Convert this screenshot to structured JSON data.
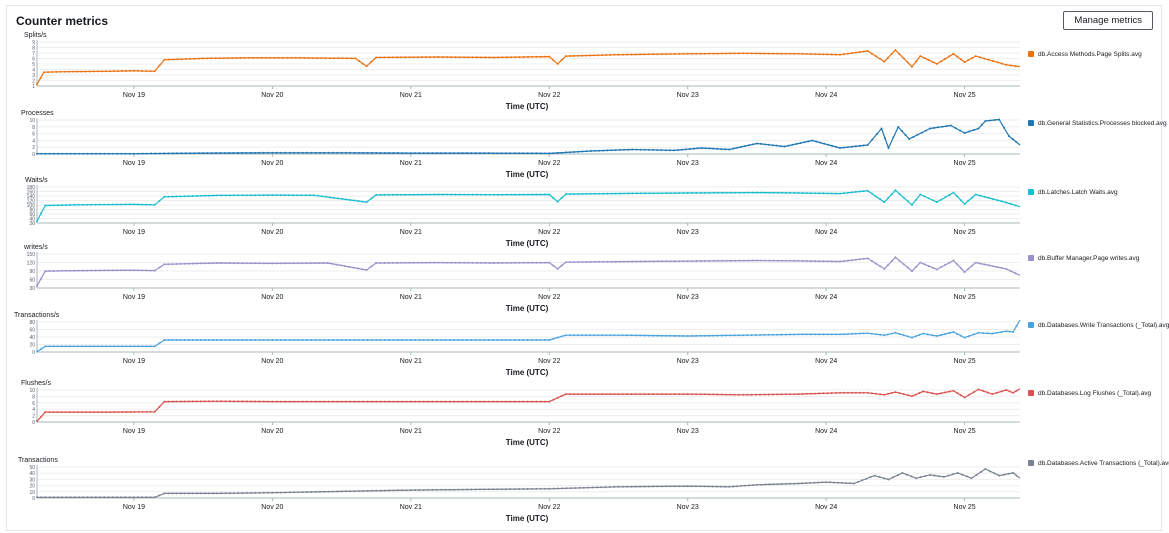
{
  "panel": {
    "title": "Counter metrics",
    "manage_button": "Manage metrics"
  },
  "x_axis": {
    "label": "Time (UTC)",
    "ticks": [
      "Nov 19",
      "Nov 20",
      "Nov 21",
      "Nov 22",
      "Nov 23",
      "Nov 24",
      "Nov 25"
    ],
    "domain_days": [
      18.3,
      25.4
    ]
  },
  "chart_data": [
    {
      "type": "line",
      "ylabel": "Splits/s",
      "x_label": "Time (UTC)",
      "x_range_days": [
        18.3,
        25.4
      ],
      "y_ticks": [
        "9",
        "8",
        "7",
        "6",
        "5",
        "4",
        "3",
        "2",
        "1"
      ],
      "ylim": [
        0,
        10
      ],
      "series": [
        {
          "name": "db.Access Methods.Page Splits.avg",
          "color": "#ec7211",
          "points": [
            [
              18.3,
              0.4
            ],
            [
              18.35,
              3.0
            ],
            [
              18.5,
              3.1
            ],
            [
              18.8,
              3.2
            ],
            [
              19.0,
              3.3
            ],
            [
              19.15,
              3.2
            ],
            [
              19.22,
              5.7
            ],
            [
              19.5,
              6.0
            ],
            [
              19.8,
              6.1
            ],
            [
              20.2,
              6.1
            ],
            [
              20.6,
              6.0
            ],
            [
              20.68,
              4.3
            ],
            [
              20.75,
              6.2
            ],
            [
              21.2,
              6.3
            ],
            [
              21.6,
              6.2
            ],
            [
              22.0,
              6.4
            ],
            [
              22.06,
              4.8
            ],
            [
              22.12,
              6.5
            ],
            [
              22.5,
              6.8
            ],
            [
              23.0,
              7.0
            ],
            [
              23.4,
              7.1
            ],
            [
              23.8,
              7.0
            ],
            [
              24.1,
              6.8
            ],
            [
              24.3,
              7.6
            ],
            [
              24.42,
              5.3
            ],
            [
              24.5,
              7.8
            ],
            [
              24.62,
              4.2
            ],
            [
              24.68,
              6.5
            ],
            [
              24.8,
              4.8
            ],
            [
              24.92,
              7.0
            ],
            [
              25.0,
              5.2
            ],
            [
              25.08,
              6.5
            ],
            [
              25.3,
              4.6
            ],
            [
              25.4,
              4.2
            ]
          ]
        }
      ]
    },
    {
      "type": "line",
      "ylabel": "Processes",
      "x_label": "Time (UTC)",
      "x_range_days": [
        18.3,
        25.4
      ],
      "y_ticks": [
        "10",
        "8",
        "6",
        "4",
        "2",
        "0"
      ],
      "ylim": [
        0,
        12
      ],
      "series": [
        {
          "name": "db.General Statistics.Processes blocked.avg",
          "color": "#1f77b4",
          "points": [
            [
              18.3,
              0.1
            ],
            [
              19.0,
              0.1
            ],
            [
              19.5,
              0.3
            ],
            [
              20.0,
              0.4
            ],
            [
              20.5,
              0.4
            ],
            [
              21.0,
              0.3
            ],
            [
              21.5,
              0.3
            ],
            [
              22.0,
              0.2
            ],
            [
              22.3,
              1.0
            ],
            [
              22.6,
              1.5
            ],
            [
              22.9,
              1.2
            ],
            [
              23.1,
              2.0
            ],
            [
              23.3,
              1.5
            ],
            [
              23.5,
              3.5
            ],
            [
              23.7,
              2.5
            ],
            [
              23.9,
              4.5
            ],
            [
              24.1,
              2.0
            ],
            [
              24.3,
              3.0
            ],
            [
              24.4,
              8.5
            ],
            [
              24.45,
              2.0
            ],
            [
              24.52,
              9.0
            ],
            [
              24.6,
              5.0
            ],
            [
              24.75,
              8.5
            ],
            [
              24.9,
              9.5
            ],
            [
              25.0,
              7.0
            ],
            [
              25.1,
              8.5
            ],
            [
              25.15,
              11.0
            ],
            [
              25.25,
              11.5
            ],
            [
              25.32,
              6.0
            ],
            [
              25.4,
              3.0
            ]
          ]
        }
      ]
    },
    {
      "type": "line",
      "ylabel": "Waits/s",
      "x_label": "Time (UTC)",
      "x_range_days": [
        18.3,
        25.4
      ],
      "y_ticks": [
        "180",
        "160",
        "140",
        "120",
        "100",
        "80",
        "60",
        "40",
        "20"
      ],
      "ylim": [
        0,
        200
      ],
      "series": [
        {
          "name": "db.Latches.Latch Waits.avg",
          "color": "#17becf",
          "points": [
            [
              18.3,
              10
            ],
            [
              18.36,
              92
            ],
            [
              18.6,
              96
            ],
            [
              19.0,
              98
            ],
            [
              19.15,
              95
            ],
            [
              19.22,
              138
            ],
            [
              19.6,
              145
            ],
            [
              20.0,
              147
            ],
            [
              20.3,
              146
            ],
            [
              20.68,
              110
            ],
            [
              20.75,
              148
            ],
            [
              21.2,
              150
            ],
            [
              21.6,
              149
            ],
            [
              22.0,
              150
            ],
            [
              22.06,
              112
            ],
            [
              22.12,
              152
            ],
            [
              22.6,
              156
            ],
            [
              23.0,
              158
            ],
            [
              23.5,
              160
            ],
            [
              23.8,
              158
            ],
            [
              24.1,
              155
            ],
            [
              24.3,
              170
            ],
            [
              24.42,
              110
            ],
            [
              24.5,
              172
            ],
            [
              24.62,
              95
            ],
            [
              24.68,
              150
            ],
            [
              24.8,
              110
            ],
            [
              24.92,
              160
            ],
            [
              25.0,
              100
            ],
            [
              25.08,
              150
            ],
            [
              25.3,
              108
            ],
            [
              25.4,
              85
            ]
          ]
        }
      ]
    },
    {
      "type": "line",
      "ylabel": "writes/s",
      "x_label": "Time (UTC)",
      "x_range_days": [
        18.3,
        25.4
      ],
      "y_ticks": [
        "150",
        "120",
        "90",
        "60",
        "30"
      ],
      "ylim": [
        0,
        170
      ],
      "series": [
        {
          "name": "db.Buffer Manager.Page writes.avg",
          "color": "#9d8fc9",
          "points": [
            [
              18.3,
              10
            ],
            [
              18.36,
              80
            ],
            [
              18.6,
              82
            ],
            [
              19.0,
              84
            ],
            [
              19.15,
              82
            ],
            [
              19.22,
              112
            ],
            [
              19.6,
              118
            ],
            [
              20.0,
              116
            ],
            [
              20.4,
              118
            ],
            [
              20.68,
              85
            ],
            [
              20.75,
              118
            ],
            [
              21.2,
              120
            ],
            [
              21.6,
              118
            ],
            [
              22.0,
              120
            ],
            [
              22.06,
              90
            ],
            [
              22.12,
              122
            ],
            [
              22.6,
              125
            ],
            [
              23.0,
              127
            ],
            [
              23.5,
              130
            ],
            [
              23.8,
              128
            ],
            [
              24.1,
              125
            ],
            [
              24.3,
              140
            ],
            [
              24.42,
              90
            ],
            [
              24.5,
              145
            ],
            [
              24.62,
              80
            ],
            [
              24.68,
              120
            ],
            [
              24.8,
              88
            ],
            [
              24.92,
              130
            ],
            [
              25.0,
              75
            ],
            [
              25.08,
              120
            ],
            [
              25.3,
              90
            ],
            [
              25.4,
              60
            ]
          ]
        }
      ]
    },
    {
      "type": "line",
      "ylabel": "Transactions/s",
      "x_label": "Time (UTC)",
      "x_range_days": [
        18.3,
        25.4
      ],
      "y_ticks": [
        "80",
        "60",
        "40",
        "20",
        "0"
      ],
      "ylim": [
        0,
        80
      ],
      "series": [
        {
          "name": "db.Databases.Write Transactions (_Total).avg",
          "color": "#4aa3df",
          "points": [
            [
              18.3,
              1
            ],
            [
              18.36,
              14
            ],
            [
              18.8,
              14
            ],
            [
              19.15,
              14
            ],
            [
              19.22,
              30
            ],
            [
              19.6,
              30
            ],
            [
              20.0,
              30
            ],
            [
              20.5,
              30
            ],
            [
              21.0,
              30
            ],
            [
              21.5,
              30
            ],
            [
              22.0,
              30
            ],
            [
              22.12,
              42
            ],
            [
              22.5,
              42
            ],
            [
              23.0,
              40
            ],
            [
              23.4,
              42
            ],
            [
              23.8,
              44
            ],
            [
              24.1,
              44
            ],
            [
              24.3,
              47
            ],
            [
              24.42,
              42
            ],
            [
              24.5,
              48
            ],
            [
              24.62,
              36
            ],
            [
              24.7,
              46
            ],
            [
              24.8,
              40
            ],
            [
              24.92,
              50
            ],
            [
              25.0,
              36
            ],
            [
              25.1,
              48
            ],
            [
              25.2,
              46
            ],
            [
              25.3,
              52
            ],
            [
              25.35,
              50
            ],
            [
              25.4,
              80
            ]
          ]
        }
      ]
    },
    {
      "type": "line",
      "ylabel": "Flushes/s",
      "x_label": "Time (UTC)",
      "x_range_days": [
        18.3,
        25.4
      ],
      "y_ticks": [
        "10",
        "8",
        "6",
        "4",
        "2",
        "0"
      ],
      "ylim": [
        0,
        10
      ],
      "series": [
        {
          "name": "db.Databases.Log Flushes (_Total).avg",
          "color": "#d9534f",
          "points": [
            [
              18.3,
              0.2
            ],
            [
              18.36,
              2.9
            ],
            [
              18.8,
              2.9
            ],
            [
              19.15,
              3.0
            ],
            [
              19.22,
              6.0
            ],
            [
              19.6,
              6.1
            ],
            [
              20.0,
              6.0
            ],
            [
              20.5,
              6.0
            ],
            [
              21.0,
              6.0
            ],
            [
              21.5,
              6.0
            ],
            [
              22.0,
              6.0
            ],
            [
              22.12,
              8.2
            ],
            [
              22.5,
              8.2
            ],
            [
              23.0,
              8.2
            ],
            [
              23.4,
              8.0
            ],
            [
              23.8,
              8.2
            ],
            [
              24.1,
              8.6
            ],
            [
              24.3,
              8.6
            ],
            [
              24.42,
              8.0
            ],
            [
              24.5,
              8.8
            ],
            [
              24.62,
              7.6
            ],
            [
              24.7,
              9.0
            ],
            [
              24.8,
              8.2
            ],
            [
              24.92,
              9.2
            ],
            [
              25.0,
              7.2
            ],
            [
              25.1,
              9.6
            ],
            [
              25.2,
              8.2
            ],
            [
              25.3,
              9.4
            ],
            [
              25.35,
              8.6
            ],
            [
              25.4,
              9.8
            ]
          ]
        }
      ]
    },
    {
      "type": "line",
      "ylabel": "Transactions",
      "x_label": "Time (UTC)",
      "x_range_days": [
        18.3,
        25.4
      ],
      "y_ticks": [
        "50",
        "40",
        "30",
        "20",
        "10",
        "0"
      ],
      "ylim": [
        0,
        50
      ],
      "series": [
        {
          "name": "db.Databases.Active Transactions (_Total).avg",
          "color": "#7b8293",
          "points": [
            [
              18.3,
              1
            ],
            [
              19.15,
              1
            ],
            [
              19.22,
              7
            ],
            [
              19.6,
              7
            ],
            [
              20.0,
              8
            ],
            [
              20.5,
              10
            ],
            [
              21.0,
              12
            ],
            [
              21.5,
              13
            ],
            [
              22.0,
              14
            ],
            [
              22.5,
              17
            ],
            [
              23.0,
              18
            ],
            [
              23.3,
              17
            ],
            [
              23.5,
              20
            ],
            [
              23.8,
              22
            ],
            [
              24.0,
              24
            ],
            [
              24.2,
              22
            ],
            [
              24.35,
              34
            ],
            [
              24.45,
              28
            ],
            [
              24.55,
              38
            ],
            [
              24.65,
              30
            ],
            [
              24.75,
              35
            ],
            [
              24.85,
              32
            ],
            [
              24.95,
              38
            ],
            [
              25.05,
              30
            ],
            [
              25.15,
              44
            ],
            [
              25.25,
              34
            ],
            [
              25.35,
              38
            ],
            [
              25.4,
              30
            ]
          ]
        }
      ]
    }
  ]
}
